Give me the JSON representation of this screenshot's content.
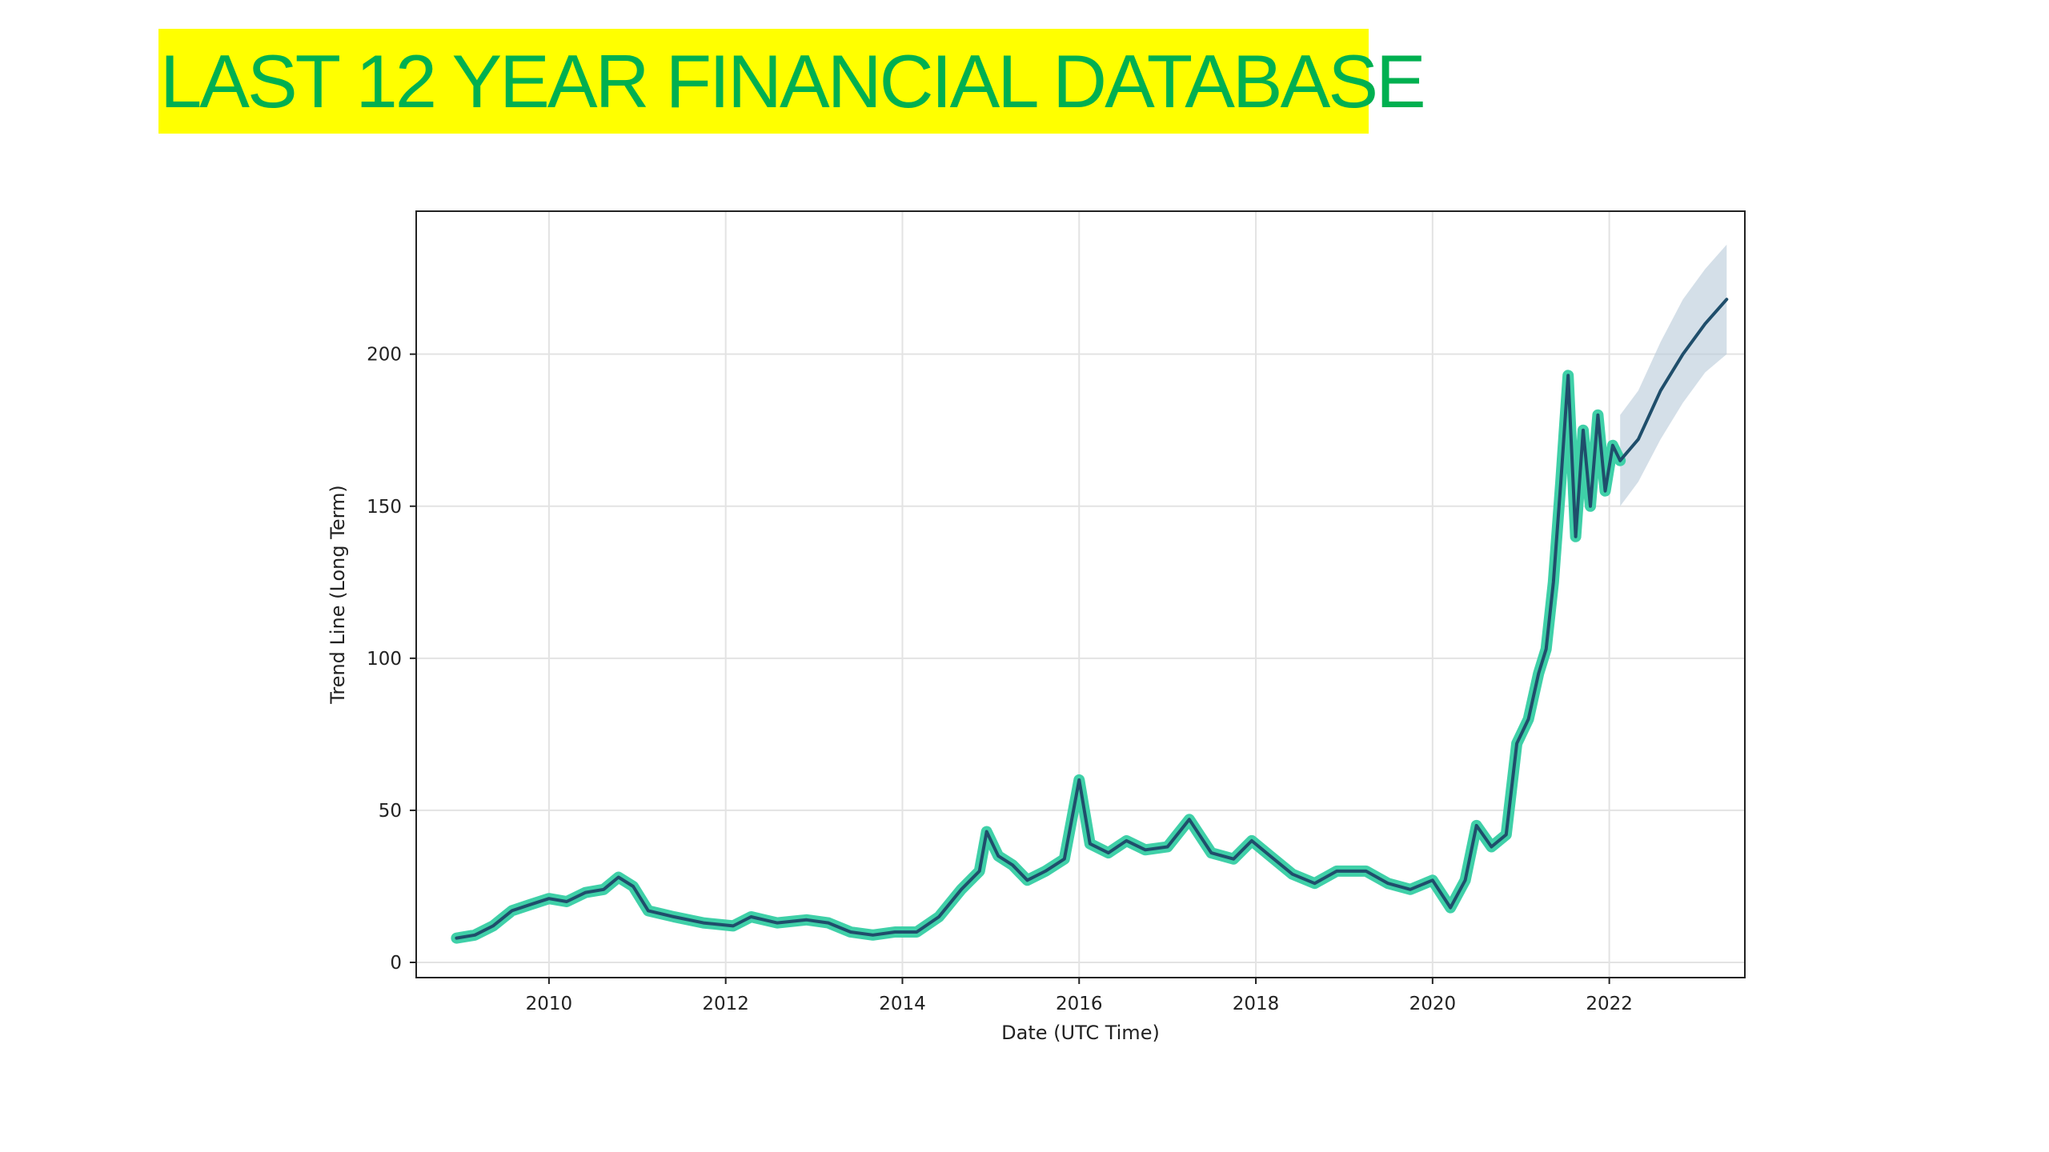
{
  "slide": {
    "title": "LAST 12 YEAR FINANCIAL DATABASE"
  },
  "colors": {
    "title_text": "#00b050",
    "title_highlight": "#ffff00",
    "trend_line": "#1f4e6b",
    "data_glow": "#3fd0a8",
    "uncertainty_band": "#b7c9d8"
  },
  "chart_data": {
    "type": "line",
    "title": "",
    "xlabel": "Date (UTC Time)",
    "ylabel": "Trend Line (Long Term)",
    "x_ticks": [
      "2010",
      "2012",
      "2014",
      "2016",
      "2018",
      "2020",
      "2022"
    ],
    "y_ticks": [
      "0",
      "50",
      "100",
      "150",
      "200"
    ],
    "xlim": [
      "2008-07-01",
      "2023-07-15"
    ],
    "ylim": [
      -5,
      247
    ],
    "grid": true,
    "series": [
      {
        "role": "history_with_actuals",
        "points": [
          [
            "2008-12-15",
            8
          ],
          [
            "2009-03-01",
            9
          ],
          [
            "2009-05-15",
            12
          ],
          [
            "2009-08-01",
            17
          ],
          [
            "2009-10-15",
            19
          ],
          [
            "2010-01-01",
            21
          ],
          [
            "2010-03-15",
            20
          ],
          [
            "2010-06-01",
            23
          ],
          [
            "2010-08-15",
            24
          ],
          [
            "2010-10-15",
            28
          ],
          [
            "2010-12-15",
            25
          ],
          [
            "2011-02-15",
            17
          ],
          [
            "2011-06-01",
            15
          ],
          [
            "2011-10-01",
            13
          ],
          [
            "2012-02-01",
            12
          ],
          [
            "2012-04-15",
            15
          ],
          [
            "2012-08-01",
            13
          ],
          [
            "2012-12-01",
            14
          ],
          [
            "2013-03-01",
            13
          ],
          [
            "2013-06-01",
            10
          ],
          [
            "2013-09-01",
            9
          ],
          [
            "2013-12-01",
            10
          ],
          [
            "2014-03-01",
            10
          ],
          [
            "2014-06-01",
            15
          ],
          [
            "2014-09-01",
            24
          ],
          [
            "2014-11-15",
            30
          ],
          [
            "2014-12-15",
            43
          ],
          [
            "2015-02-01",
            35
          ],
          [
            "2015-04-01",
            32
          ],
          [
            "2015-06-01",
            27
          ],
          [
            "2015-08-15",
            30
          ],
          [
            "2015-11-01",
            34
          ],
          [
            "2016-01-01",
            60
          ],
          [
            "2016-02-15",
            39
          ],
          [
            "2016-05-01",
            36
          ],
          [
            "2016-07-15",
            40
          ],
          [
            "2016-10-01",
            37
          ],
          [
            "2017-01-01",
            38
          ],
          [
            "2017-04-01",
            47
          ],
          [
            "2017-07-01",
            36
          ],
          [
            "2017-10-01",
            34
          ],
          [
            "2017-12-15",
            40
          ],
          [
            "2018-03-01",
            35
          ],
          [
            "2018-06-01",
            29
          ],
          [
            "2018-09-01",
            26
          ],
          [
            "2018-12-01",
            30
          ],
          [
            "2019-04-01",
            30
          ],
          [
            "2019-07-01",
            26
          ],
          [
            "2019-10-01",
            24
          ],
          [
            "2020-01-01",
            27
          ],
          [
            "2020-03-15",
            18
          ],
          [
            "2020-05-15",
            27
          ],
          [
            "2020-07-01",
            45
          ],
          [
            "2020-09-01",
            38
          ],
          [
            "2020-11-01",
            42
          ],
          [
            "2020-12-15",
            72
          ],
          [
            "2021-02-01",
            80
          ],
          [
            "2021-03-15",
            95
          ],
          [
            "2021-04-15",
            103
          ],
          [
            "2021-05-15",
            125
          ],
          [
            "2021-06-15",
            158
          ],
          [
            "2021-07-15",
            193
          ],
          [
            "2021-08-15",
            140
          ],
          [
            "2021-09-15",
            175
          ],
          [
            "2021-10-15",
            150
          ],
          [
            "2021-11-15",
            180
          ],
          [
            "2021-12-15",
            155
          ],
          [
            "2022-01-15",
            170
          ],
          [
            "2022-02-15",
            165
          ]
        ]
      },
      {
        "role": "forecast_trend",
        "points": [
          [
            "2022-02-15",
            165
          ],
          [
            "2022-05-01",
            172
          ],
          [
            "2022-08-01",
            188
          ],
          [
            "2022-11-01",
            200
          ],
          [
            "2023-02-01",
            210
          ],
          [
            "2023-05-01",
            218
          ]
        ],
        "band_lower": [
          [
            "2022-02-15",
            150
          ],
          [
            "2022-05-01",
            158
          ],
          [
            "2022-08-01",
            172
          ],
          [
            "2022-11-01",
            184
          ],
          [
            "2023-02-01",
            194
          ],
          [
            "2023-05-01",
            200
          ]
        ],
        "band_upper": [
          [
            "2022-02-15",
            180
          ],
          [
            "2022-05-01",
            188
          ],
          [
            "2022-08-01",
            204
          ],
          [
            "2022-11-01",
            218
          ],
          [
            "2023-02-01",
            228
          ],
          [
            "2023-05-01",
            236
          ]
        ]
      }
    ]
  }
}
